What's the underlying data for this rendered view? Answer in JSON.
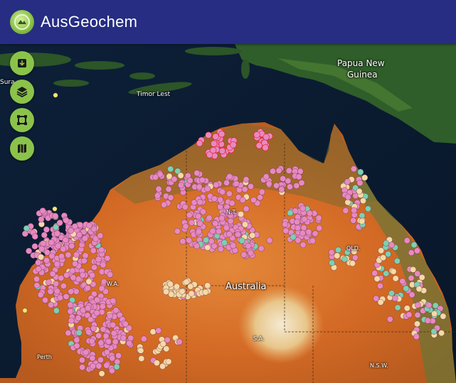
{
  "header": {
    "title": "AusGeochem",
    "accent": "#262d82"
  },
  "toolbar": [
    {
      "name": "download-tool",
      "icon": "download-icon"
    },
    {
      "name": "layers-tool",
      "icon": "layers-icon"
    },
    {
      "name": "area-select-tool",
      "icon": "area-select-icon"
    },
    {
      "name": "map-type-tool",
      "icon": "map-icon"
    }
  ],
  "map": {
    "labels": {
      "papua_line1": "Papua New",
      "papua_line2": "Guinea",
      "timor": "Timor Lest",
      "sura": "Sura",
      "australia": "Australia",
      "nt": "N.T.",
      "qld": "QLD.",
      "wa": "W.A.",
      "sa": "S.A.",
      "nsw": "N.S.W.",
      "perth": "Perth"
    },
    "colors": {
      "sample_pink": "#e889c1",
      "sample_cream": "#f6d9a6",
      "sample_teal": "#7cd0b0",
      "selection": "#e01b24"
    }
  }
}
